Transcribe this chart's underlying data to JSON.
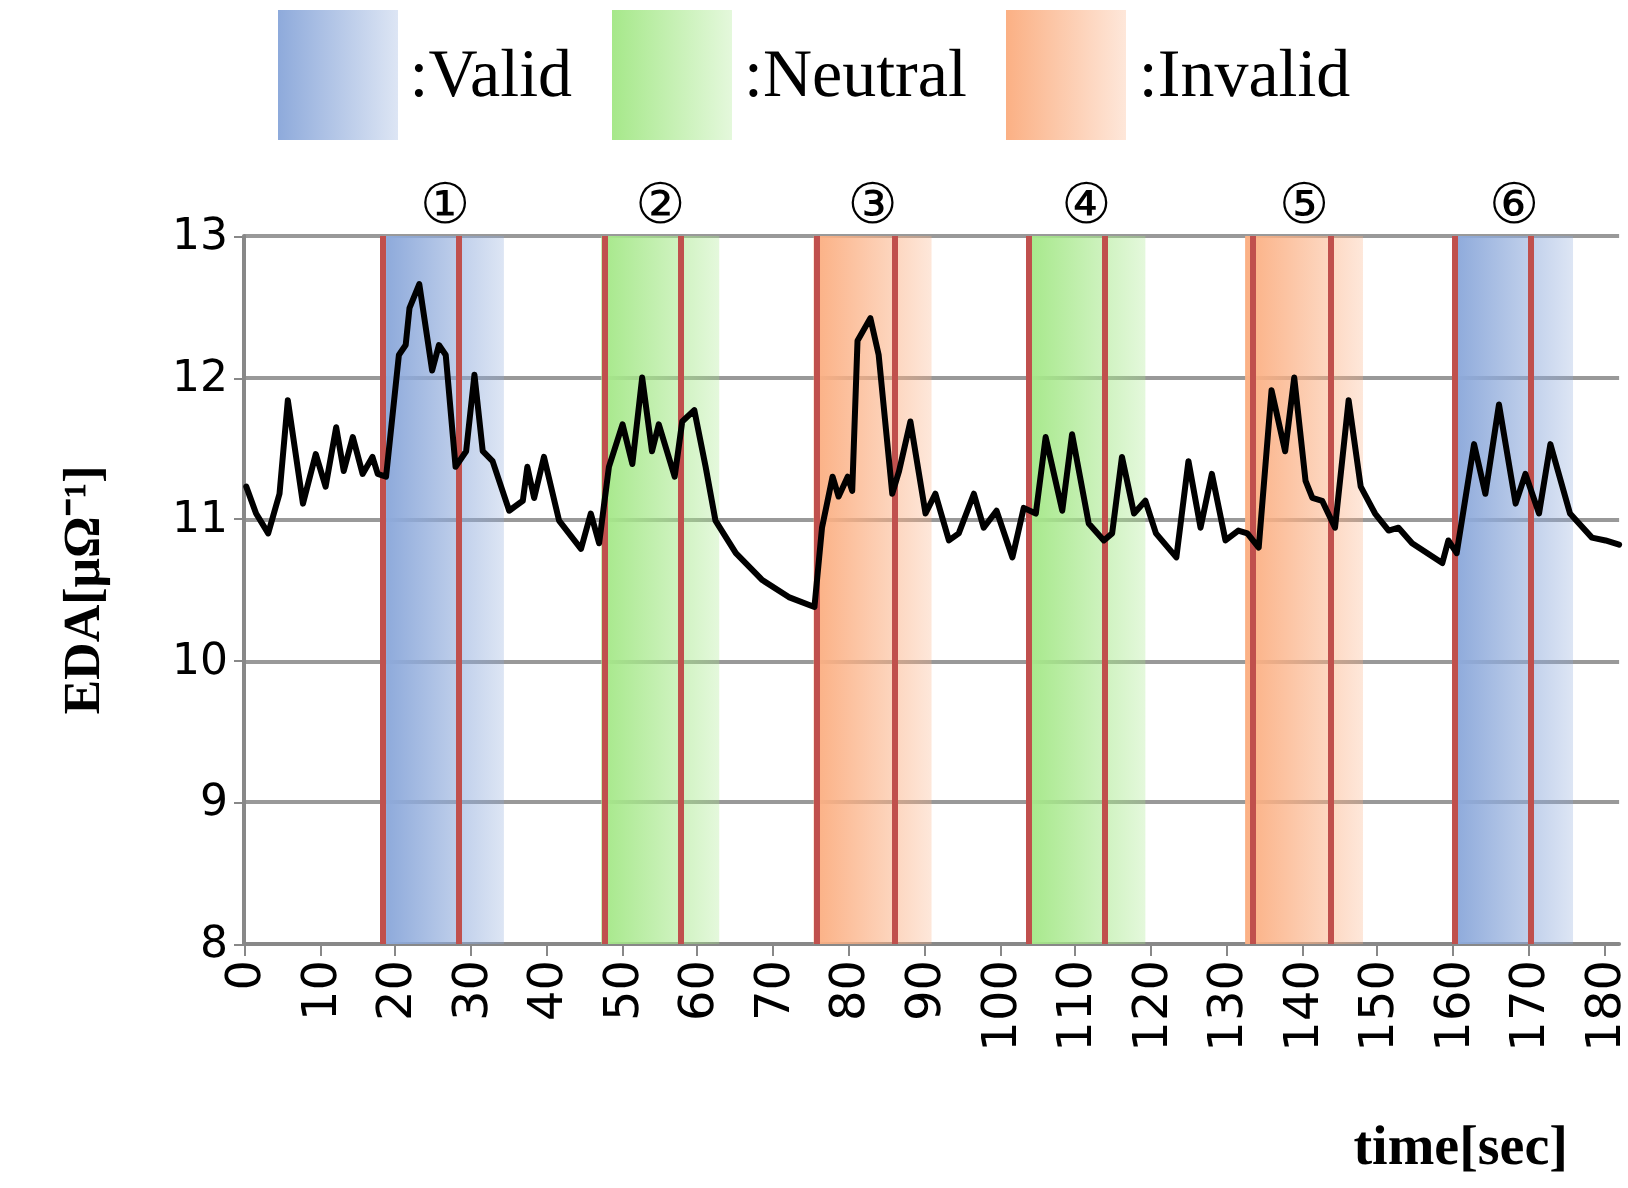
{
  "chart_data": {
    "type": "line",
    "xlabel": "time[sec]",
    "ylabel": "EDA[μΩ⁻¹]",
    "x": [
      0.3,
      1.6,
      3.2,
      4.7,
      5.8,
      7.8,
      9.5,
      10.8,
      12.2,
      13.2,
      14.4,
      15.7,
      17.0,
      17.7,
      18.8,
      20.5,
      21.4,
      21.9,
      23.2,
      24.9,
      25.8,
      26.7,
      28.0,
      29.4,
      30.5,
      31.6,
      32.9,
      35.1,
      36.9,
      37.5,
      38.4,
      39.7,
      41.7,
      44.6,
      45.9,
      47.0,
      48.3,
      50.1,
      51.4,
      52.7,
      54.0,
      54.9,
      57.0,
      58.0,
      59.6,
      61.1,
      62.4,
      65.1,
      68.6,
      72.1,
      75.5,
      76.5,
      77.9,
      78.7,
      79.9,
      80.5,
      81.2,
      82.9,
      84.0,
      85.8,
      86.7,
      88.2,
      90.2,
      91.5,
      93.3,
      94.6,
      96.6,
      97.9,
      99.6,
      101.7,
      103.2,
      104.8,
      106.1,
      108.3,
      109.6,
      111.8,
      113.8,
      114.9,
      116.2,
      117.8,
      119.3,
      120.7,
      123.4,
      125.0,
      126.6,
      128.1,
      129.9,
      131.6,
      132.8,
      134.3,
      136.0,
      137.8,
      139.0,
      140.5,
      141.4,
      142.7,
      144.4,
      146.2,
      147.8,
      149.7,
      151.5,
      152.8,
      154.6,
      158.6,
      159.4,
      160.5,
      162.8,
      164.3,
      166.1,
      168.3,
      169.6,
      171.4,
      172.9,
      175.5,
      178.4,
      180.2,
      182.0
    ],
    "series": [
      {
        "color": "#000000",
        "values": [
          11.23,
          11.04,
          10.9,
          11.18,
          11.84,
          11.11,
          11.46,
          11.23,
          11.65,
          11.34,
          11.58,
          11.32,
          11.44,
          11.32,
          11.3,
          12.16,
          12.23,
          12.49,
          12.66,
          12.05,
          12.23,
          12.16,
          11.37,
          11.48,
          12.02,
          11.48,
          11.41,
          11.06,
          11.13,
          11.37,
          11.15,
          11.44,
          10.99,
          10.79,
          11.04,
          10.83,
          11.37,
          11.67,
          11.39,
          12.0,
          11.48,
          11.67,
          11.3,
          11.69,
          11.77,
          11.37,
          10.99,
          10.76,
          10.57,
          10.45,
          10.38,
          10.94,
          11.3,
          11.16,
          11.3,
          11.2,
          12.26,
          12.42,
          12.16,
          11.18,
          11.34,
          11.69,
          11.04,
          11.18,
          10.85,
          10.9,
          11.18,
          10.94,
          11.06,
          10.73,
          11.08,
          11.04,
          11.58,
          11.06,
          11.6,
          10.97,
          10.85,
          10.9,
          11.44,
          11.04,
          11.13,
          10.9,
          10.73,
          11.41,
          10.94,
          11.32,
          10.85,
          10.92,
          10.9,
          10.8,
          11.91,
          11.48,
          12.0,
          11.27,
          11.15,
          11.13,
          10.94,
          11.84,
          11.23,
          11.04,
          10.92,
          10.94,
          10.83,
          10.69,
          10.85,
          10.76,
          11.53,
          11.18,
          11.81,
          11.11,
          11.32,
          11.04,
          11.53,
          11.04,
          10.87,
          10.85,
          10.82
        ]
      }
    ],
    "xlim": [
      0,
      182
    ],
    "xticks": [
      0,
      10,
      20,
      30,
      40,
      50,
      60,
      70,
      80,
      90,
      100,
      110,
      120,
      130,
      140,
      150,
      160,
      170,
      180
    ],
    "ylim": [
      8,
      13
    ],
    "yticks": [
      8,
      9,
      10,
      11,
      12,
      13
    ],
    "grid": "y",
    "marker": "none",
    "line_style": "solid",
    "legend": "top",
    "annotations": [
      ":Valid",
      ":Neutral",
      ":Invalid"
    ],
    "bands": [
      {
        "axis": "x",
        "from": 18.8,
        "to": 34.4,
        "label": "①",
        "color": "#8eaadb"
      },
      {
        "axis": "x",
        "from": 47.3,
        "to": 62.9,
        "label": "②",
        "color": "#a6e88a"
      },
      {
        "axis": "x",
        "from": 75.4,
        "to": 91.0,
        "label": "③",
        "color": "#fbb084"
      },
      {
        "axis": "x",
        "from": 103.7,
        "to": 119.3,
        "label": "④",
        "color": "#a6e88a"
      },
      {
        "axis": "x",
        "from": 132.5,
        "to": 148.1,
        "label": "⑤",
        "color": "#fbb084"
      },
      {
        "axis": "x",
        "from": 160.3,
        "to": 175.9,
        "label": "⑥",
        "color": "#8eaadb"
      }
    ],
    "ref_lines": [
      {
        "axis": "x",
        "value": 18.3,
        "color": "#c0504d"
      },
      {
        "axis": "x",
        "value": 28.3,
        "color": "#c0504d"
      },
      {
        "axis": "x",
        "value": 47.6,
        "color": "#c0504d"
      },
      {
        "axis": "x",
        "value": 57.7,
        "color": "#c0504d"
      },
      {
        "axis": "x",
        "value": 75.7,
        "color": "#c0504d"
      },
      {
        "axis": "x",
        "value": 86.0,
        "color": "#c0504d"
      },
      {
        "axis": "x",
        "value": 103.7,
        "color": "#c0504d"
      },
      {
        "axis": "x",
        "value": 113.8,
        "color": "#c0504d"
      },
      {
        "axis": "x",
        "value": 133.6,
        "color": "#c0504d"
      },
      {
        "axis": "x",
        "value": 143.7,
        "color": "#c0504d"
      },
      {
        "axis": "x",
        "value": 160.3,
        "color": "#c0504d"
      },
      {
        "axis": "x",
        "value": 170.4,
        "color": "#c0504d"
      }
    ]
  }
}
